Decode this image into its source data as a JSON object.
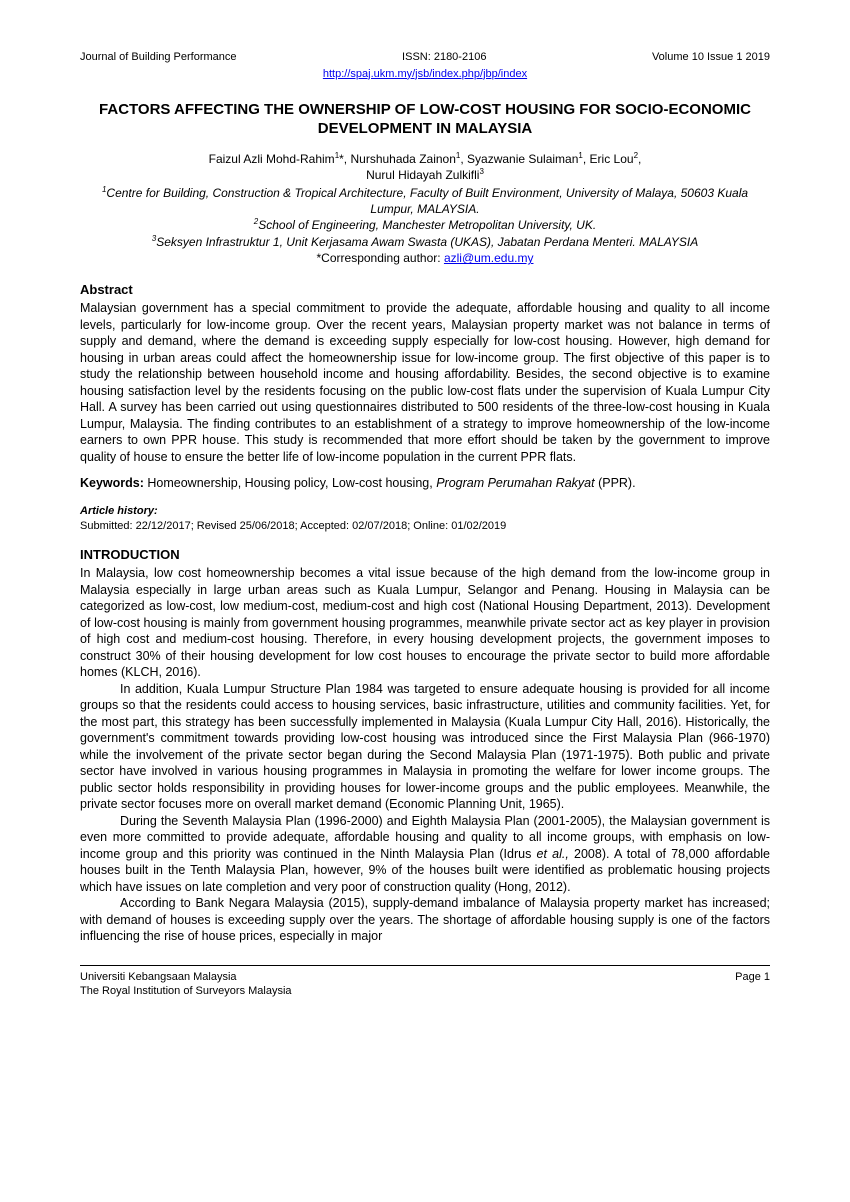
{
  "header": {
    "journal": "Journal of Building Performance",
    "issn": "ISSN: 2180-2106",
    "volume": "Volume 10 Issue 1 2019",
    "url": "http://spaj.ukm.my/jsb/index.php/jbp/index"
  },
  "title": "FACTORS AFFECTING THE OWNERSHIP OF LOW-COST HOUSING FOR SOCIO-ECONOMIC DEVELOPMENT IN MALAYSIA",
  "authors_line1_a": "Faizul Azli Mohd-Rahim",
  "authors_line1_b": "*, Nurshuhada Zainon",
  "authors_line1_c": ", Syazwanie Sulaiman",
  "authors_line1_d": ", Eric Lou",
  "authors_line1_e": ",",
  "authors_line2_a": "Nurul Hidayah Zulkifli",
  "aff1": "Centre for Building, Construction & Tropical Architecture, Faculty of Built Environment, University of Malaya, 50603 Kuala Lumpur, MALAYSIA.",
  "aff2": "School of Engineering, Manchester Metropolitan University, UK.",
  "aff3": "Seksyen Infrastruktur 1, Unit Kerjasama Awam Swasta (UKAS), Jabatan Perdana Menteri. MALAYSIA",
  "corr_label": "*Corresponding author: ",
  "corr_email": "azli@um.edu.my",
  "abstract_head": "Abstract",
  "abstract": "Malaysian government has a special commitment to provide the adequate, affordable housing and quality to all income levels, particularly for low-income group. Over the recent years, Malaysian property market was not balance in terms of supply and demand, where the demand is exceeding supply especially for low-cost housing. However, high demand for housing in urban areas could affect the homeownership issue for low-income group. The first objective of this paper is to study the relationship between household income and housing affordability. Besides, the second objective is to examine housing satisfaction level by the residents focusing on the public low-cost flats under the supervision of Kuala Lumpur City Hall. A survey has been carried out using questionnaires distributed to 500 residents of the three-low-cost housing in Kuala Lumpur, Malaysia. The finding contributes to an establishment of a strategy to improve homeownership of the low-income earners to own PPR house. This study is recommended that more effort should be taken by the government to improve quality of house to ensure the better life of low-income population in the current PPR flats.",
  "keywords_label": "Keywords:",
  "keywords_text": " Homeownership, Housing policy, Low-cost housing, ",
  "keywords_italic": "Program Perumahan Rakyat",
  "keywords_tail": " (PPR).",
  "history_label": "Article history:",
  "history": "Submitted: 22/12/2017; Revised 25/06/2018; Accepted: 02/07/2018; Online: 01/02/2019",
  "intro_head": "INTRODUCTION",
  "p1": "In Malaysia, low cost homeownership becomes a vital issue because of the high demand from the low-income group in Malaysia especially in large urban areas such as Kuala Lumpur, Selangor and Penang. Housing in Malaysia can be categorized as low-cost, low medium-cost, medium-cost and high cost (National Housing Department, 2013). Development of low-cost housing is mainly from government housing programmes, meanwhile private sector act as key player in provision of high cost and medium-cost housing. Therefore, in every housing development projects, the government imposes to construct 30% of their housing development for low cost houses to encourage the private sector to build more affordable homes (KLCH, 2016).",
  "p2": "In addition, Kuala Lumpur Structure Plan 1984 was targeted to ensure adequate housing is provided for all income groups so that the residents could access to housing services, basic infrastructure, utilities and community facilities. Yet, for the most part, this strategy has been successfully implemented in Malaysia (Kuala Lumpur City Hall, 2016). Historically, the government's commitment towards providing low-cost housing was introduced since the First Malaysia Plan (966-1970) while the involvement of the private sector began during the Second Malaysia Plan (1971-1975). Both public and private sector have involved in various housing programmes in Malaysia in promoting the welfare for lower income groups. The public sector holds responsibility in providing houses for lower-income groups and the public employees. Meanwhile, the private sector focuses more on overall market demand (Economic Planning Unit, 1965).",
  "p3a": "During the Seventh Malaysia Plan (1996-2000) and Eighth Malaysia Plan (2001-2005), the Malaysian government is even more committed to provide adequate, affordable housing and quality to all income groups, with emphasis on low-income group and this priority was continued in the Ninth Malaysia Plan (Idrus ",
  "p3b": "et al.,",
  "p3c": " 2008). A total of 78,000 affordable houses built in the Tenth Malaysia Plan, however, 9% of the houses built were identified as problematic housing projects which have issues on late completion and very poor of construction quality (Hong, 2012).",
  "p4": "According to Bank Negara Malaysia (2015), supply-demand imbalance of Malaysia property market has increased; with demand of houses is exceeding supply over the years. The shortage of affordable housing supply is one of the factors influencing the rise of house prices, especially in major",
  "footer": {
    "line1": "Universiti Kebangsaan Malaysia",
    "line2": "The Royal Institution of Surveyors Malaysia",
    "page": "Page 1"
  }
}
